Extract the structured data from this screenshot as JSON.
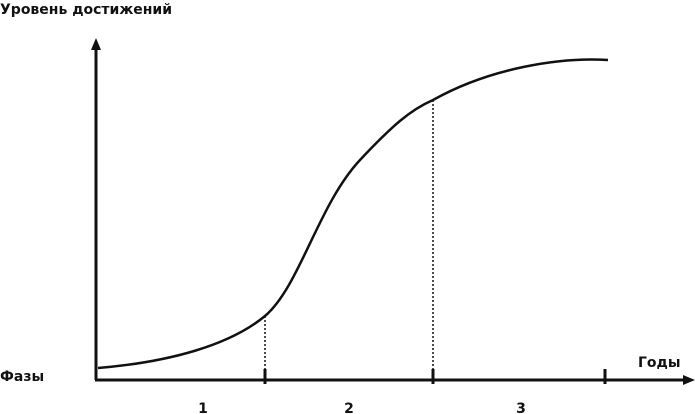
{
  "header": {
    "title": "Уровень достижений"
  },
  "axes": {
    "x_label": "Годы",
    "phase_label": "Фазы"
  },
  "phases": [
    {
      "label": "1"
    },
    {
      "label": "2"
    },
    {
      "label": "3"
    }
  ]
}
